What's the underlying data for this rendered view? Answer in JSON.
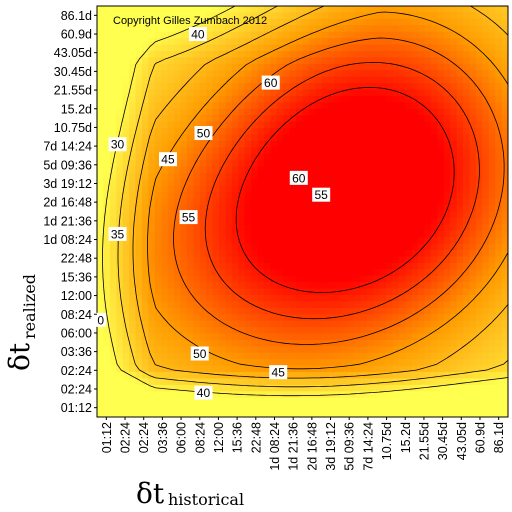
{
  "chart_data": {
    "type": "heatmap",
    "title": "",
    "copyright": "Copyright Gilles Zumbach 2012",
    "xlabel": {
      "symbol": "δt",
      "subscript": "historical"
    },
    "ylabel": {
      "symbol": "δt",
      "subscript": "realized"
    },
    "x_ticks": [
      "01:12",
      "02:24",
      "02:24",
      "03:36",
      "06:00",
      "08:24",
      "12:00",
      "15:36",
      "22:48",
      "1d 08:24",
      "1d 21:36",
      "2d 16:48",
      "3d 19:12",
      "5d 09:36",
      "7d 14:24",
      "10.75d",
      "15.2d",
      "21.55d",
      "30.45d",
      "43.05d",
      "60.9d",
      "86.1d"
    ],
    "y_ticks": [
      "86.1d",
      "60.9d",
      "43.05d",
      "30.45d",
      "21.55d",
      "15.2d",
      "10.75d",
      "7d 14:24",
      "5d 09:36",
      "3d 19:12",
      "2d 16:48",
      "1d 21:36",
      "1d 08:24",
      "22:48",
      "15:36",
      "12:00",
      "08:24",
      "06:00",
      "03:36",
      "02:24",
      "02:24",
      "01:12"
    ],
    "contour_levels": [
      30,
      35,
      40,
      45,
      50,
      55,
      60
    ],
    "contour_labels": [
      {
        "value": "40",
        "xi": 5.2,
        "yi": 20.2
      },
      {
        "value": "45",
        "xi": 9.2,
        "yi": 19.1
      },
      {
        "value": "50",
        "xi": 5.0,
        "yi": 18.1
      },
      {
        "value": "50",
        "xi": 5.2,
        "yi": 6.3
      },
      {
        "value": "55",
        "xi": 4.4,
        "yi": 10.8
      },
      {
        "value": "45",
        "xi": 3.3,
        "yi": 7.7
      },
      {
        "value": "40",
        "xi": 4.9,
        "yi": 1.0
      },
      {
        "value": "35",
        "xi": 0.6,
        "yi": 11.7
      },
      {
        "value": "30",
        "xi": 0.6,
        "yi": 6.9
      },
      {
        "value": "0",
        "xi": -0.3,
        "yi": 16.3
      },
      {
        "value": "60",
        "xi": 8.8,
        "yi": 3.6
      },
      {
        "value": "60",
        "xi": 10.3,
        "yi": 8.7
      },
      {
        "value": "55",
        "xi": 11.5,
        "yi": 9.6
      }
    ],
    "colors": {
      "low": "#ffff33",
      "mid": "#ff9900",
      "high": "#ff0000"
    },
    "grid": false,
    "legend": "none"
  }
}
